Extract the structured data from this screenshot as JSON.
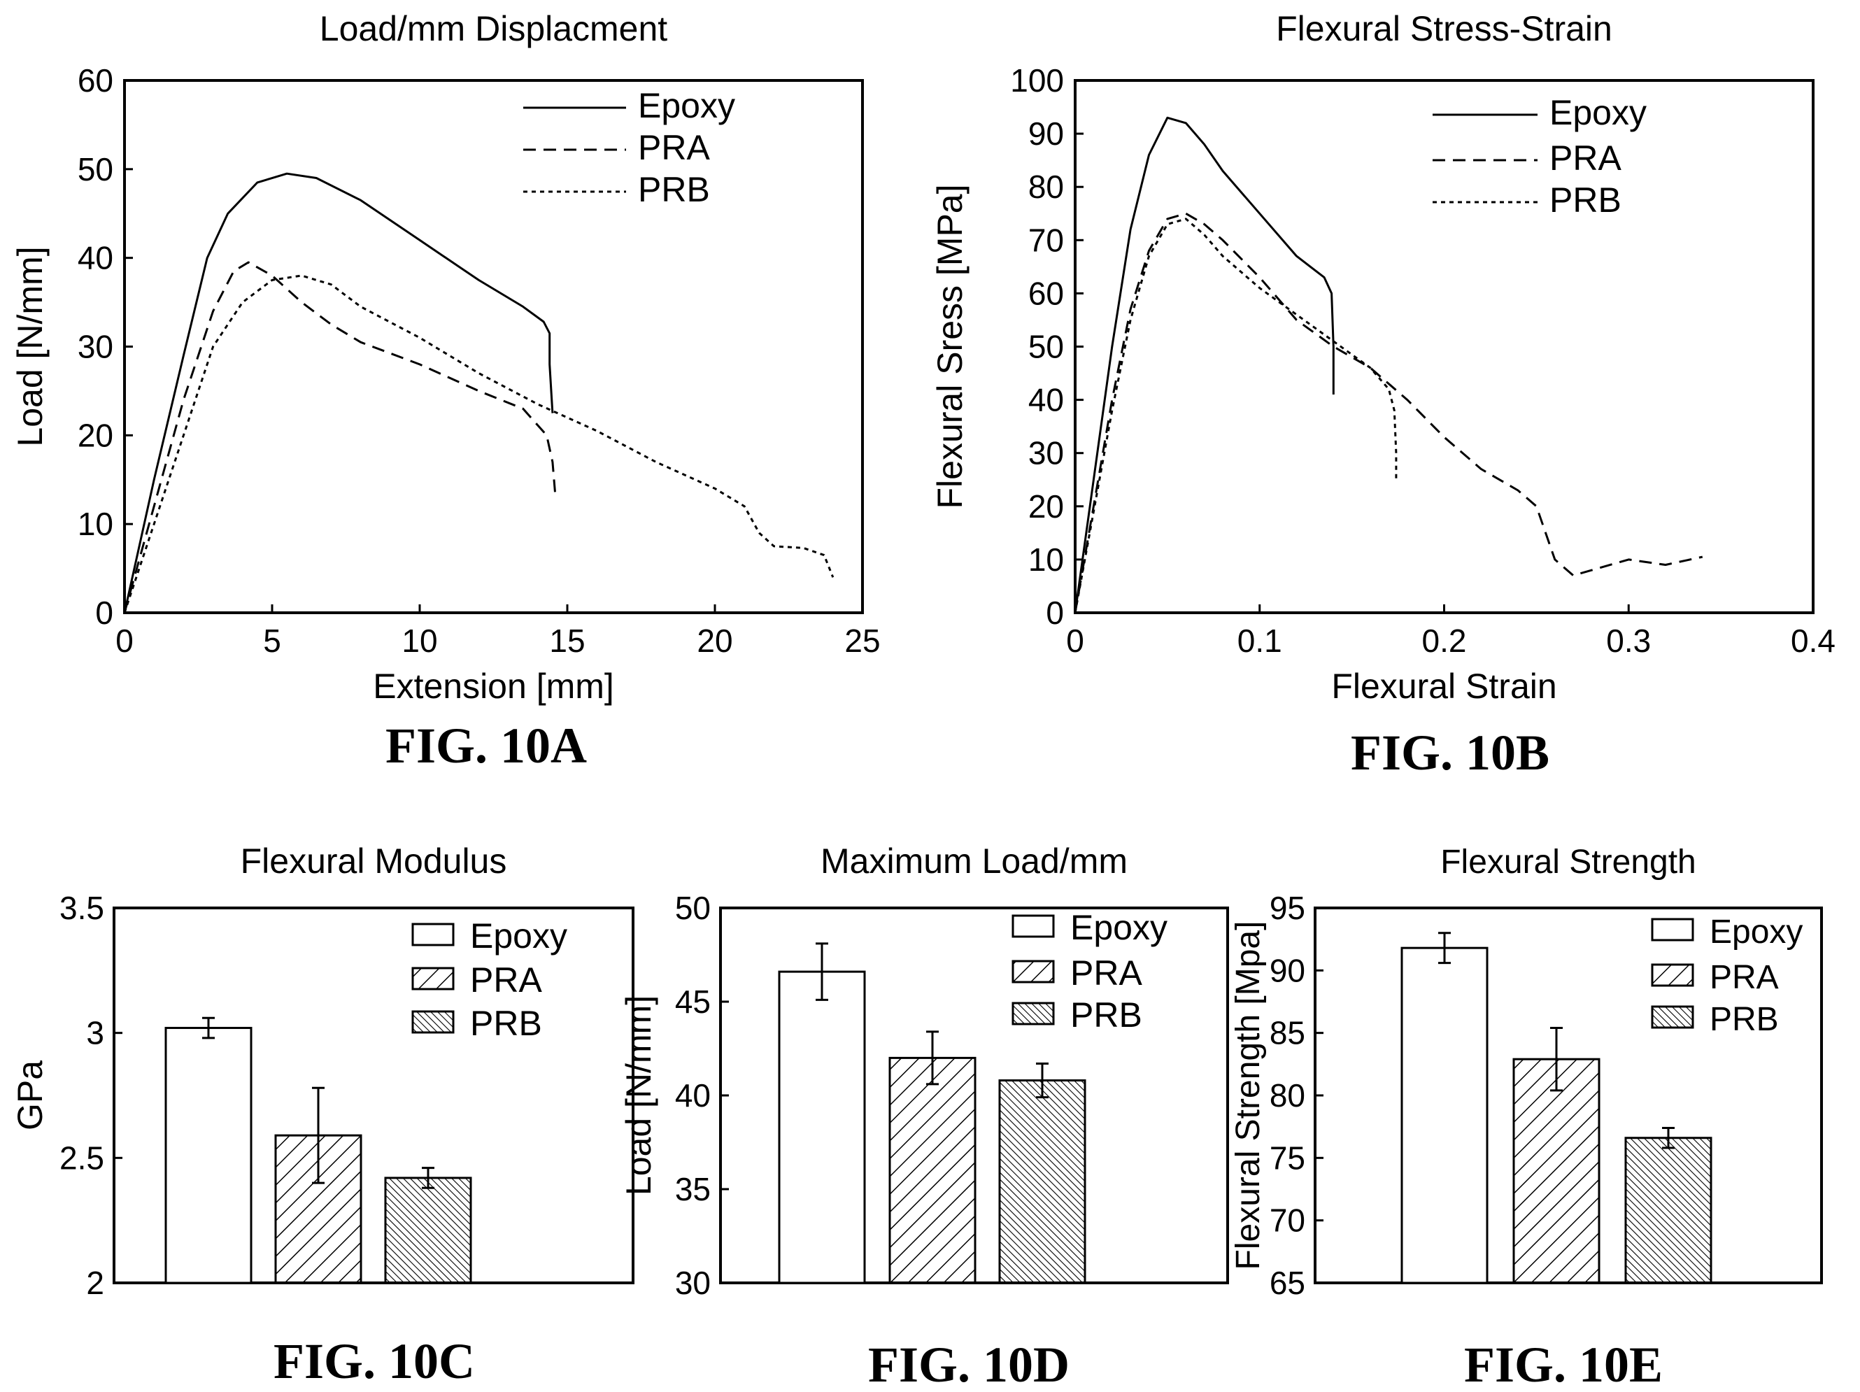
{
  "figure_labels": [
    "FIG. 10A",
    "FIG. 10B",
    "FIG. 10C",
    "FIG. 10D",
    "FIG. 10E"
  ],
  "chart_data": [
    {
      "id": "10A",
      "type": "line",
      "title": "Load/mm Displacment",
      "xlabel": "Extension [mm]",
      "ylabel": "Load [N/mm]",
      "xlim": [
        0,
        25
      ],
      "ylim": [
        0,
        60
      ],
      "xticks": [
        0,
        5,
        10,
        15,
        20,
        25
      ],
      "yticks": [
        0,
        10,
        20,
        30,
        40,
        50,
        60
      ],
      "legend_position": "top-right",
      "series": [
        {
          "name": "Epoxy",
          "style": "solid",
          "points": [
            [
              0,
              0
            ],
            [
              1,
              15
            ],
            [
              2,
              29
            ],
            [
              2.8,
              40
            ],
            [
              3.5,
              45
            ],
            [
              4.5,
              48.5
            ],
            [
              5.5,
              49.5
            ],
            [
              6.5,
              49
            ],
            [
              8,
              46.5
            ],
            [
              10,
              42
            ],
            [
              12,
              37.5
            ],
            [
              13.5,
              34.5
            ],
            [
              14.2,
              32.8
            ],
            [
              14.4,
              31.5
            ],
            [
              14.4,
              28
            ],
            [
              14.5,
              22.5
            ]
          ]
        },
        {
          "name": "PRA",
          "style": "dashed",
          "points": [
            [
              0,
              0
            ],
            [
              1,
              12
            ],
            [
              2,
              24
            ],
            [
              3,
              34
            ],
            [
              3.7,
              38.5
            ],
            [
              4.2,
              39.5
            ],
            [
              5,
              38
            ],
            [
              6,
              35
            ],
            [
              7,
              32.5
            ],
            [
              8,
              30.5
            ],
            [
              10,
              28
            ],
            [
              12,
              25
            ],
            [
              13.5,
              23
            ],
            [
              14.3,
              20
            ],
            [
              14.5,
              17
            ],
            [
              14.6,
              13
            ]
          ]
        },
        {
          "name": "PRB",
          "style": "dotted",
          "points": [
            [
              0,
              0
            ],
            [
              1,
              10
            ],
            [
              2,
              20
            ],
            [
              3,
              30
            ],
            [
              4,
              35
            ],
            [
              5,
              37.5
            ],
            [
              6,
              38
            ],
            [
              7,
              37
            ],
            [
              8,
              34.5
            ],
            [
              10,
              31
            ],
            [
              12,
              27
            ],
            [
              14,
              23.5
            ],
            [
              16,
              20.5
            ],
            [
              18,
              17
            ],
            [
              20,
              14
            ],
            [
              21,
              12
            ],
            [
              21.5,
              9
            ],
            [
              22,
              7.5
            ],
            [
              23,
              7.3
            ],
            [
              23.7,
              6.5
            ],
            [
              24,
              4
            ]
          ]
        }
      ]
    },
    {
      "id": "10B",
      "type": "line",
      "title": "Flexural Stress-Strain",
      "xlabel": "Flexural Strain",
      "ylabel": "Flexural Sress [MPa]",
      "xlim": [
        0,
        0.4
      ],
      "ylim": [
        0,
        100
      ],
      "xticks": [
        0,
        0.1,
        0.2,
        0.3,
        0.4
      ],
      "yticks": [
        0,
        10,
        20,
        30,
        40,
        50,
        60,
        70,
        80,
        90,
        100
      ],
      "legend_position": "top-right",
      "series": [
        {
          "name": "Epoxy",
          "style": "solid",
          "points": [
            [
              0,
              0
            ],
            [
              0.01,
              25
            ],
            [
              0.02,
              50
            ],
            [
              0.03,
              72
            ],
            [
              0.04,
              86
            ],
            [
              0.05,
              93
            ],
            [
              0.06,
              92
            ],
            [
              0.07,
              88
            ],
            [
              0.08,
              83
            ],
            [
              0.1,
              75
            ],
            [
              0.12,
              67
            ],
            [
              0.135,
              63
            ],
            [
              0.139,
              60
            ],
            [
              0.14,
              50
            ],
            [
              0.14,
              41
            ]
          ]
        },
        {
          "name": "PRA",
          "style": "dashed",
          "points": [
            [
              0,
              0
            ],
            [
              0.01,
              20
            ],
            [
              0.02,
              40
            ],
            [
              0.03,
              57
            ],
            [
              0.04,
              68
            ],
            [
              0.05,
              74
            ],
            [
              0.06,
              75
            ],
            [
              0.07,
              73
            ],
            [
              0.08,
              70
            ],
            [
              0.1,
              63
            ],
            [
              0.12,
              55
            ],
            [
              0.14,
              50
            ],
            [
              0.16,
              46
            ],
            [
              0.18,
              40
            ],
            [
              0.2,
              33
            ],
            [
              0.22,
              27
            ],
            [
              0.24,
              23
            ],
            [
              0.25,
              20
            ],
            [
              0.26,
              10
            ],
            [
              0.27,
              7
            ],
            [
              0.28,
              8
            ],
            [
              0.3,
              10
            ],
            [
              0.32,
              9
            ],
            [
              0.34,
              10.5
            ]
          ]
        },
        {
          "name": "PRB",
          "style": "dotted",
          "points": [
            [
              0,
              0
            ],
            [
              0.01,
              19
            ],
            [
              0.02,
              38
            ],
            [
              0.03,
              55
            ],
            [
              0.04,
              67
            ],
            [
              0.05,
              73
            ],
            [
              0.06,
              74
            ],
            [
              0.07,
              71
            ],
            [
              0.08,
              67
            ],
            [
              0.1,
              61
            ],
            [
              0.12,
              56
            ],
            [
              0.14,
              51
            ],
            [
              0.16,
              46
            ],
            [
              0.17,
              42
            ],
            [
              0.173,
              38
            ],
            [
              0.174,
              30
            ],
            [
              0.174,
              25
            ]
          ]
        }
      ]
    },
    {
      "id": "10C",
      "type": "bar",
      "title": "Flexural Modulus",
      "xlabel": "",
      "ylabel": "GPa",
      "ylim": [
        2,
        3.5
      ],
      "yticks": [
        "2",
        "2.5",
        "3",
        "3.5"
      ],
      "legend_position": "top-right",
      "series": [
        {
          "name": "Epoxy",
          "value": 3.02,
          "error": 0.04,
          "pattern": "none"
        },
        {
          "name": "PRA",
          "value": 2.59,
          "error": 0.19,
          "pattern": "hatch"
        },
        {
          "name": "PRB",
          "value": 2.42,
          "error": 0.04,
          "pattern": "dense-hatch"
        }
      ]
    },
    {
      "id": "10D",
      "type": "bar",
      "title": "Maximum Load/mm",
      "xlabel": "",
      "ylabel": "Load [N/mm]",
      "ylim": [
        30,
        50
      ],
      "yticks": [
        "30",
        "35",
        "40",
        "45",
        "50"
      ],
      "legend_position": "top-right",
      "series": [
        {
          "name": "Epoxy",
          "value": 46.6,
          "error": 1.5,
          "pattern": "none"
        },
        {
          "name": "PRA",
          "value": 42.0,
          "error": 1.4,
          "pattern": "hatch"
        },
        {
          "name": "PRB",
          "value": 40.8,
          "error": 0.9,
          "pattern": "dense-hatch"
        }
      ]
    },
    {
      "id": "10E",
      "type": "bar",
      "title": "Flexural Strength",
      "xlabel": "",
      "ylabel": "Flexural Strength [Mpa]",
      "ylim": [
        65,
        95
      ],
      "yticks": [
        "65",
        "70",
        "75",
        "80",
        "85",
        "90",
        "95"
      ],
      "legend_position": "top-right",
      "series": [
        {
          "name": "Epoxy",
          "value": 91.8,
          "error": 1.2,
          "pattern": "none"
        },
        {
          "name": "PRA",
          "value": 82.9,
          "error": 2.5,
          "pattern": "hatch"
        },
        {
          "name": "PRB",
          "value": 76.6,
          "error": 0.8,
          "pattern": "dense-hatch"
        }
      ]
    }
  ]
}
